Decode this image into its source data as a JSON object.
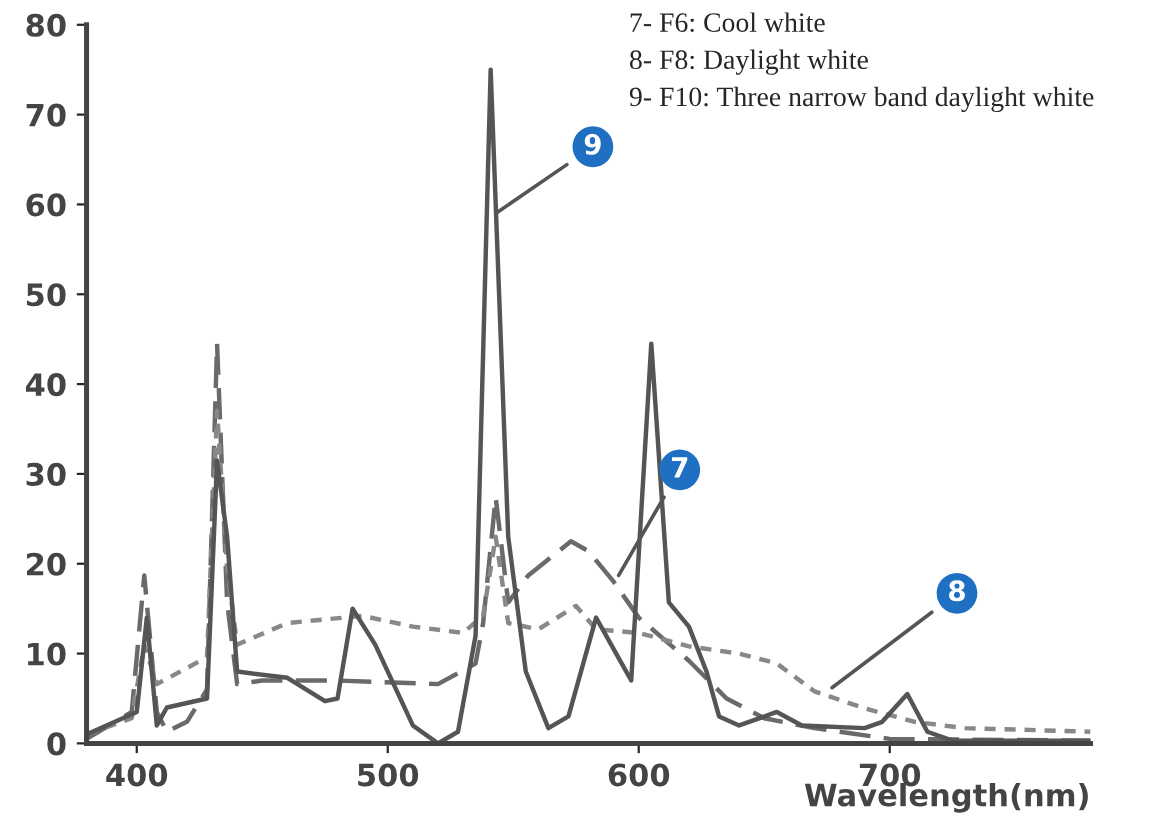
{
  "chart_data": {
    "type": "line",
    "xlabel": "Wavelength(nm)",
    "xlim": [
      380,
      780
    ],
    "xticks": [
      400,
      500,
      600,
      700
    ],
    "ylim": [
      0,
      80
    ],
    "yticks": [
      0,
      10,
      20,
      30,
      40,
      50,
      60,
      70,
      80
    ],
    "grid": false,
    "marker": "none",
    "series": [
      {
        "color": "#6a6a6a",
        "line_style": "dashed",
        "x": [
          380,
          398,
          403,
          408,
          412,
          420,
          428,
          432,
          436,
          440,
          450,
          480,
          520,
          535,
          538,
          543,
          548,
          556,
          573,
          580,
          590,
          600,
          620,
          635,
          650,
          670,
          700,
          780
        ],
        "values": [
          0.5,
          3.5,
          18.7,
          3.5,
          1.3,
          2.4,
          6,
          44.5,
          15.7,
          6.6,
          7,
          7,
          6.6,
          8.9,
          13.4,
          27.4,
          15.7,
          18.7,
          22.5,
          21.4,
          18,
          14,
          9.2,
          5,
          2.8,
          1.7,
          0.5,
          0.3
        ]
      },
      {
        "color": "#888888",
        "line_style": "dotted",
        "x": [
          380,
          398,
          403,
          408,
          428,
          432,
          436,
          440,
          460,
          490,
          510,
          530,
          538,
          543,
          548,
          560,
          575,
          583,
          600,
          620,
          640,
          655,
          670,
          690,
          710,
          730,
          780
        ],
        "values": [
          1,
          2.8,
          11,
          6.6,
          9.6,
          37,
          19.5,
          11,
          13.4,
          14.2,
          13,
          12.3,
          14.2,
          23,
          13.4,
          12.7,
          15.3,
          12.7,
          12.3,
          10.8,
          10,
          8.9,
          5.8,
          3.9,
          2.4,
          1.7,
          1.3
        ]
      },
      {
        "color": "#555555",
        "line_style": "solid",
        "x": [
          380,
          400,
          404,
          408,
          412,
          428,
          432,
          436,
          440,
          460,
          475,
          480,
          486,
          495,
          510,
          520,
          528,
          535,
          541,
          548,
          555,
          564,
          572,
          583,
          597,
          605,
          612,
          620,
          627,
          632,
          640,
          655,
          665,
          690,
          697,
          707,
          715,
          725,
          780
        ],
        "values": [
          1,
          3.5,
          14,
          2,
          4,
          5,
          31.5,
          23,
          8,
          7.3,
          4.7,
          5,
          15,
          11,
          2,
          0,
          1.3,
          12,
          75,
          23,
          8,
          1.7,
          3,
          14,
          7,
          44.5,
          15.7,
          13,
          8,
          3,
          2,
          3.5,
          2,
          1.7,
          2.4,
          5.5,
          1.3,
          0.3,
          0.3
        ]
      }
    ],
    "annotations": [
      "7- F6: Cool white",
      "8- F8: Daylight white",
      "9- F10: Three narrow band daylight white",
      {
        "text": "9",
        "x": 543,
        "y": 59
      },
      {
        "text": "7",
        "x": 592,
        "y": 18.7
      },
      {
        "text": "8",
        "x": 677,
        "y": 6.2
      }
    ]
  }
}
